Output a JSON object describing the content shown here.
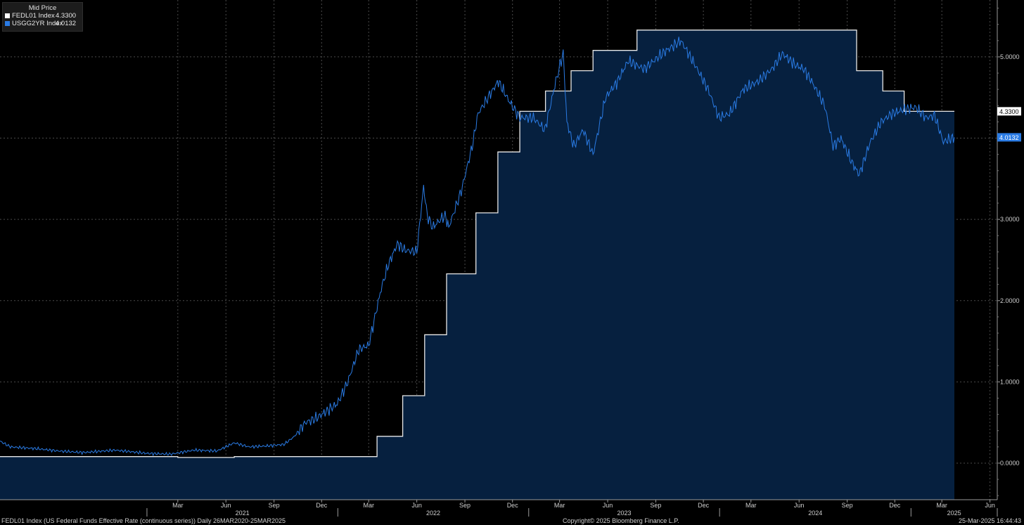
{
  "legend": {
    "header": "Mid Price",
    "items": [
      {
        "name": "FEDL01 Index",
        "value": "4.3300",
        "color": "#ffffff"
      },
      {
        "name": "USGG2YR Index",
        "value": "4.0132",
        "color": "#2a7be4"
      }
    ]
  },
  "footer": {
    "left": "FEDL01 Index (US Federal Funds Effective Rate (continuous series))  Daily 26MAR2020-25MAR2025",
    "center": "Copyright© 2025 Bloomberg Finance L.P.",
    "right": "25-Mar-2025 16:44:43"
  },
  "colors": {
    "background": "#000000",
    "area_fill": "#06203f",
    "fedl": "#e8e8e8",
    "usgg": "#2a7be4",
    "grid": "#4a4a4a"
  },
  "chart_data": {
    "type": "line",
    "ylim": [
      -0.45,
      5.7
    ],
    "y_ticks": [
      "0.0000",
      "1.0000",
      "2.0000",
      "3.0000",
      "4.0000",
      "5.0000"
    ],
    "x_month_ticks": [
      "Mar",
      "Jun",
      "Sep",
      "Dec",
      "Mar",
      "Jun",
      "Sep",
      "Dec",
      "Mar",
      "Jun",
      "Sep",
      "Dec",
      "Mar",
      "Jun",
      "Sep",
      "Dec",
      "Mar",
      "Jun"
    ],
    "x_year_labels": [
      "2021",
      "2022",
      "2023",
      "2024",
      "2025"
    ],
    "last_value_labels": [
      {
        "series": "FEDL01 Index",
        "value": "4.3300"
      },
      {
        "series": "USGG2YR Index",
        "value": "4.0132"
      }
    ],
    "series": [
      {
        "name": "FEDL01 Index",
        "style": "step-area",
        "color": "#e8e8e8",
        "points": [
          [
            "2020-03-26",
            0.08
          ],
          [
            "2021-03-01",
            0.07
          ],
          [
            "2021-06-17",
            0.08
          ],
          [
            "2021-08-01",
            0.08
          ],
          [
            "2022-03-17",
            0.33
          ],
          [
            "2022-05-05",
            0.83
          ],
          [
            "2022-06-16",
            1.58
          ],
          [
            "2022-07-28",
            2.33
          ],
          [
            "2022-09-22",
            3.08
          ],
          [
            "2022-11-03",
            3.83
          ],
          [
            "2022-12-15",
            4.33
          ],
          [
            "2023-02-02",
            4.58
          ],
          [
            "2023-03-23",
            4.83
          ],
          [
            "2023-05-04",
            5.08
          ],
          [
            "2023-07-27",
            5.33
          ],
          [
            "2024-09-19",
            4.83
          ],
          [
            "2024-11-08",
            4.58
          ],
          [
            "2024-12-19",
            4.33
          ],
          [
            "2025-03-25",
            4.33
          ]
        ]
      },
      {
        "name": "USGG2YR Index",
        "style": "line",
        "color": "#2a7be4",
        "points": [
          [
            "2020-03-26",
            0.27
          ],
          [
            "2020-04-15",
            0.2
          ],
          [
            "2020-06-01",
            0.18
          ],
          [
            "2020-07-15",
            0.15
          ],
          [
            "2020-09-01",
            0.13
          ],
          [
            "2020-11-01",
            0.16
          ],
          [
            "2021-01-01",
            0.12
          ],
          [
            "2021-02-15",
            0.11
          ],
          [
            "2021-04-01",
            0.16
          ],
          [
            "2021-05-15",
            0.15
          ],
          [
            "2021-06-17",
            0.25
          ],
          [
            "2021-07-15",
            0.2
          ],
          [
            "2021-08-15",
            0.21
          ],
          [
            "2021-09-20",
            0.23
          ],
          [
            "2021-10-10",
            0.33
          ],
          [
            "2021-10-31",
            0.5
          ],
          [
            "2021-11-20",
            0.55
          ],
          [
            "2021-12-31",
            0.73
          ],
          [
            "2022-01-20",
            1.0
          ],
          [
            "2022-02-10",
            1.4
          ],
          [
            "2022-03-01",
            1.45
          ],
          [
            "2022-03-25",
            2.15
          ],
          [
            "2022-04-08",
            2.45
          ],
          [
            "2022-04-25",
            2.7
          ],
          [
            "2022-05-10",
            2.62
          ],
          [
            "2022-06-01",
            2.6
          ],
          [
            "2022-06-14",
            3.4
          ],
          [
            "2022-06-21",
            3.05
          ],
          [
            "2022-07-01",
            2.9
          ],
          [
            "2022-07-25",
            3.05
          ],
          [
            "2022-08-01",
            2.9
          ],
          [
            "2022-08-25",
            3.35
          ],
          [
            "2022-09-15",
            3.9
          ],
          [
            "2022-09-26",
            4.3
          ],
          [
            "2022-10-20",
            4.55
          ],
          [
            "2022-11-04",
            4.7
          ],
          [
            "2022-11-25",
            4.45
          ],
          [
            "2022-12-15",
            4.25
          ],
          [
            "2023-01-10",
            4.25
          ],
          [
            "2023-02-01",
            4.1
          ],
          [
            "2023-02-20",
            4.65
          ],
          [
            "2023-03-08",
            5.05
          ],
          [
            "2023-03-15",
            4.2
          ],
          [
            "2023-03-28",
            3.9
          ],
          [
            "2023-04-15",
            4.1
          ],
          [
            "2023-05-04",
            3.8
          ],
          [
            "2023-05-28",
            4.5
          ],
          [
            "2023-06-20",
            4.7
          ],
          [
            "2023-07-10",
            4.95
          ],
          [
            "2023-08-10",
            4.85
          ],
          [
            "2023-09-15",
            5.05
          ],
          [
            "2023-10-19",
            5.2
          ],
          [
            "2023-11-15",
            4.9
          ],
          [
            "2023-12-10",
            4.6
          ],
          [
            "2023-12-31",
            4.25
          ],
          [
            "2024-01-20",
            4.3
          ],
          [
            "2024-02-15",
            4.6
          ],
          [
            "2024-03-15",
            4.7
          ],
          [
            "2024-04-10",
            4.85
          ],
          [
            "2024-04-30",
            5.04
          ],
          [
            "2024-05-25",
            4.9
          ],
          [
            "2024-06-10",
            4.85
          ],
          [
            "2024-06-25",
            4.7
          ],
          [
            "2024-07-20",
            4.4
          ],
          [
            "2024-08-05",
            3.9
          ],
          [
            "2024-08-20",
            4.0
          ],
          [
            "2024-09-10",
            3.7
          ],
          [
            "2024-09-24",
            3.55
          ],
          [
            "2024-10-15",
            3.95
          ],
          [
            "2024-11-05",
            4.2
          ],
          [
            "2024-11-25",
            4.3
          ],
          [
            "2024-12-18",
            4.35
          ],
          [
            "2025-01-10",
            4.38
          ],
          [
            "2025-01-30",
            4.25
          ],
          [
            "2025-02-15",
            4.28
          ],
          [
            "2025-03-04",
            3.95
          ],
          [
            "2025-03-12",
            3.98
          ],
          [
            "2025-03-25",
            4.01
          ]
        ]
      }
    ]
  }
}
